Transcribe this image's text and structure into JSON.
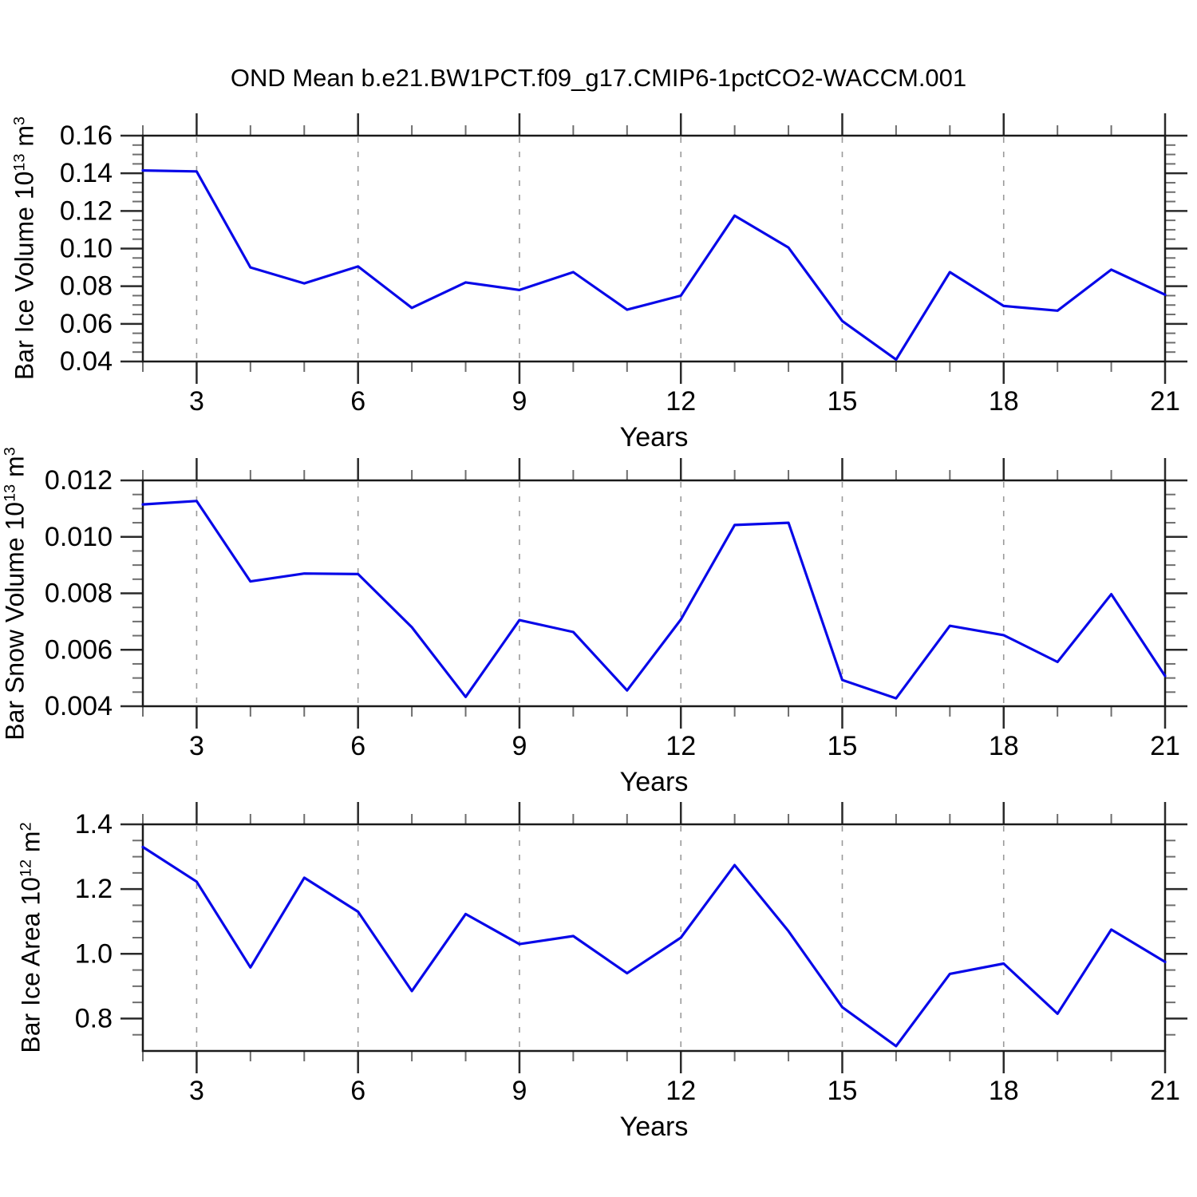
{
  "title": "OND Mean b.e21.BW1PCT.f09_g17.CMIP6-1pctCO2-WACCM.001",
  "colors": {
    "line": "#0808e8",
    "grid": "#9a9a9a",
    "axis": "#1a1a1a",
    "major_tick": "#2a2a2a",
    "minor_tick": "#6e6e6e",
    "text": "#000000"
  },
  "x_axis": {
    "label": "Years",
    "ticks": [
      3,
      6,
      9,
      12,
      15,
      18,
      21
    ],
    "tick_labels": [
      "3",
      "6",
      "9",
      "12",
      "15",
      "18",
      "21"
    ],
    "minor_step": 1,
    "xlim": [
      2,
      21
    ],
    "grid_years": [
      3,
      6,
      9,
      12,
      15,
      18
    ]
  },
  "chart_data": [
    {
      "type": "line",
      "name": "bar-ice-volume",
      "ylabel_text": "Bar Ice Volume 10^13 m^3",
      "ylabel_parts": [
        {
          "t": "Bar Ice Volume 10"
        },
        {
          "sup": "13"
        },
        {
          "t": " m"
        },
        {
          "sup": "3"
        }
      ],
      "xlabel": "Years",
      "ylim": [
        0.04,
        0.16
      ],
      "y_ticks": [
        {
          "v": 0.16,
          "label": "0.16"
        },
        {
          "v": 0.14,
          "label": "0.14"
        },
        {
          "v": 0.12,
          "label": "0.12"
        },
        {
          "v": 0.1,
          "label": "0.10"
        },
        {
          "v": 0.08,
          "label": "0.08"
        },
        {
          "v": 0.06,
          "label": "0.06"
        },
        {
          "v": 0.04,
          "label": "0.04"
        }
      ],
      "y_minor_step": 0.005,
      "x": [
        2,
        3,
        4,
        5,
        6,
        7,
        8,
        9,
        10,
        11,
        12,
        13,
        14,
        15,
        16,
        17,
        18,
        19,
        20,
        21
      ],
      "values": [
        0.1415,
        0.141,
        0.09,
        0.0815,
        0.0905,
        0.0685,
        0.082,
        0.078,
        0.0875,
        0.0675,
        0.075,
        0.1175,
        0.1005,
        0.0615,
        0.041,
        0.0875,
        0.0695,
        0.067,
        0.0888,
        0.0755
      ]
    },
    {
      "type": "line",
      "name": "bar-snow-volume",
      "ylabel_text": "Bar Snow Volume 10^13 m^3",
      "ylabel_parts": [
        {
          "t": "Bar Snow Volume 10"
        },
        {
          "sup": "13"
        },
        {
          "t": " m"
        },
        {
          "sup": "3"
        }
      ],
      "xlabel": "Years",
      "ylim": [
        0.004,
        0.012
      ],
      "y_ticks": [
        {
          "v": 0.012,
          "label": "0.012"
        },
        {
          "v": 0.01,
          "label": "0.010"
        },
        {
          "v": 0.008,
          "label": "0.008"
        },
        {
          "v": 0.006,
          "label": "0.006"
        },
        {
          "v": 0.004,
          "label": "0.004"
        }
      ],
      "y_minor_step": 0.0005,
      "x": [
        2,
        3,
        4,
        5,
        6,
        7,
        8,
        9,
        10,
        11,
        12,
        13,
        14,
        15,
        16,
        17,
        18,
        19,
        20,
        21
      ],
      "values": [
        0.01115,
        0.01127,
        0.00842,
        0.0087,
        0.00868,
        0.0068,
        0.00433,
        0.00705,
        0.00663,
        0.00456,
        0.00707,
        0.01042,
        0.0105,
        0.00493,
        0.00428,
        0.00685,
        0.00652,
        0.00557,
        0.00797,
        0.00507
      ]
    },
    {
      "type": "line",
      "name": "bar-ice-area",
      "ylabel_text": "Bar Ice Area 10^12 m^2",
      "ylabel_parts": [
        {
          "t": "Bar Ice Area 10"
        },
        {
          "sup": "12"
        },
        {
          "t": " m"
        },
        {
          "sup": "2"
        }
      ],
      "xlabel": "Years",
      "ylim": [
        0.7,
        1.4
      ],
      "y_ticks": [
        {
          "v": 1.4,
          "label": "1.4"
        },
        {
          "v": 1.2,
          "label": "1.2"
        },
        {
          "v": 1.0,
          "label": "1.0"
        },
        {
          "v": 0.8,
          "label": "0.8"
        }
      ],
      "y_minor_step": 0.05,
      "x": [
        2,
        3,
        4,
        5,
        6,
        7,
        8,
        9,
        10,
        11,
        12,
        13,
        14,
        15,
        16,
        17,
        18,
        19,
        20,
        21
      ],
      "values": [
        1.33,
        1.223,
        0.958,
        1.235,
        1.13,
        0.885,
        1.123,
        1.03,
        1.055,
        0.94,
        1.05,
        1.274,
        1.07,
        0.835,
        0.715,
        0.938,
        0.97,
        0.815,
        1.075,
        0.975
      ]
    }
  ]
}
